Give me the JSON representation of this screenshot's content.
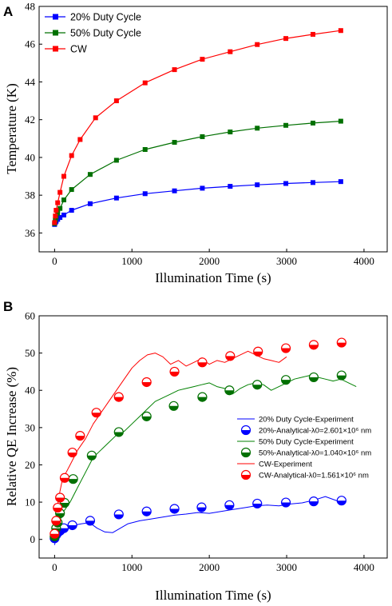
{
  "chart_data": [
    {
      "panel": "A",
      "type": "line",
      "xlabel": "Illumination Time (s)",
      "ylabel": "Temperature (K)",
      "xlim": [
        -200,
        4300
      ],
      "ylim": [
        35,
        48
      ],
      "xticks": [
        0,
        1000,
        2000,
        3000,
        4000
      ],
      "yticks": [
        36,
        38,
        40,
        42,
        44,
        46,
        48
      ],
      "legend_position": "top-left",
      "series": [
        {
          "name": "20% Duty Cycle",
          "color": "#0000ff",
          "marker": "square",
          "x": [
            0,
            10,
            20,
            40,
            70,
            120,
            220,
            460,
            800,
            1170,
            1550,
            1910,
            2270,
            2620,
            2990,
            3340,
            3700
          ],
          "y": [
            36.45,
            36.55,
            36.62,
            36.72,
            36.82,
            36.95,
            37.2,
            37.55,
            37.85,
            38.08,
            38.23,
            38.37,
            38.47,
            38.55,
            38.62,
            38.67,
            38.72
          ]
        },
        {
          "name": "50% Duty Cycle",
          "color": "#007000",
          "marker": "square",
          "x": [
            0,
            10,
            20,
            40,
            70,
            120,
            220,
            460,
            800,
            1170,
            1550,
            1910,
            2270,
            2620,
            2990,
            3340,
            3700
          ],
          "y": [
            36.5,
            36.7,
            36.85,
            37.05,
            37.3,
            37.75,
            38.3,
            39.1,
            39.85,
            40.42,
            40.8,
            41.1,
            41.35,
            41.55,
            41.7,
            41.82,
            41.92
          ]
        },
        {
          "name": "CW",
          "color": "#ff0000",
          "marker": "square",
          "x": [
            0,
            10,
            20,
            40,
            70,
            120,
            220,
            330,
            530,
            800,
            1170,
            1550,
            1910,
            2270,
            2620,
            2990,
            3340,
            3700
          ],
          "y": [
            36.55,
            36.9,
            37.2,
            37.6,
            38.15,
            39.0,
            40.1,
            40.95,
            42.1,
            43.0,
            43.95,
            44.65,
            45.2,
            45.6,
            45.98,
            46.3,
            46.52,
            46.72
          ]
        }
      ]
    },
    {
      "panel": "B",
      "type": "line",
      "xlabel": "Illumination Time (s)",
      "ylabel": "Relative QE Increase (%)",
      "xlim": [
        -200,
        4300
      ],
      "ylim": [
        -5,
        60
      ],
      "xticks": [
        0,
        1000,
        2000,
        3000,
        4000
      ],
      "yticks": [
        0,
        10,
        20,
        30,
        40,
        50,
        60
      ],
      "legend_position": "bottom-right",
      "experiment_series": [
        {
          "name": "20% Duty Cycle-Experiment",
          "color": "#0000ff",
          "x": [
            0,
            30,
            80,
            150,
            250,
            350,
            450,
            550,
            650,
            750,
            850,
            950,
            1100,
            1250,
            1400,
            1550,
            1700,
            1850,
            2000,
            2150,
            2300,
            2450,
            2600,
            2750,
            2900,
            3050,
            3200,
            3350,
            3500,
            3700
          ],
          "y": [
            -1.5,
            1.5,
            3.0,
            3.5,
            3.8,
            4.2,
            4.5,
            3.0,
            2.0,
            1.8,
            3.0,
            4.2,
            5.0,
            5.5,
            6.0,
            6.5,
            6.8,
            7.2,
            7.0,
            7.5,
            8.0,
            8.5,
            9.0,
            9.2,
            9.0,
            9.5,
            9.8,
            10.5,
            11.5,
            10.0
          ]
        },
        {
          "name": "50% Duty Cycle-Experiment",
          "color": "#008000",
          "x": [
            0,
            40,
            100,
            200,
            300,
            400,
            500,
            600,
            700,
            800,
            900,
            1000,
            1100,
            1200,
            1300,
            1400,
            1500,
            1600,
            1700,
            1800,
            1900,
            2000,
            2100,
            2200,
            2300,
            2400,
            2500,
            2600,
            2700,
            2800,
            2900,
            3000,
            3100,
            3200,
            3300,
            3400,
            3500,
            3600,
            3700,
            3800,
            3900
          ],
          "y": [
            0,
            3,
            7,
            10,
            14,
            18,
            22,
            24,
            26,
            28,
            29,
            31,
            33,
            35,
            37,
            38,
            39,
            40,
            40.5,
            41,
            41.5,
            42,
            41,
            40.5,
            39,
            40.5,
            41.5,
            42,
            41.5,
            40,
            41,
            42,
            43,
            43.5,
            44,
            43.5,
            43,
            42.5,
            43,
            42,
            41
          ]
        },
        {
          "name": "CW-Experiment",
          "color": "#ff0000",
          "x": [
            0,
            30,
            60,
            100,
            150,
            200,
            250,
            300,
            400,
            500,
            600,
            700,
            800,
            900,
            1000,
            1100,
            1200,
            1300,
            1400,
            1500,
            1600,
            1700,
            1800,
            1900,
            2000,
            2100,
            2200,
            2300,
            2400,
            2500,
            2600,
            2700,
            2800,
            2900,
            3000
          ],
          "y": [
            3,
            8,
            12,
            16,
            18,
            20,
            22,
            24,
            27,
            31,
            34,
            37,
            40,
            43,
            46,
            48,
            49.5,
            50,
            49,
            47,
            48,
            46.5,
            47.5,
            48.5,
            47,
            48,
            47.5,
            48.5,
            49.5,
            50.5,
            49.5,
            48.5,
            48,
            47.5,
            49
          ]
        }
      ],
      "analytical_series": [
        {
          "name": "20%-Analytical-λ0=2.601×10⁶ nm",
          "color": "#0000ff",
          "x": [
            0,
            20,
            40,
            70,
            120,
            230,
            460,
            830,
            1190,
            1550,
            1900,
            2260,
            2620,
            2990,
            3350,
            3710
          ],
          "y": [
            0.3,
            1.2,
            1.8,
            2.3,
            3.0,
            3.8,
            5.0,
            6.7,
            7.5,
            8.2,
            8.6,
            9.2,
            9.6,
            9.9,
            10.2,
            10.4
          ]
        },
        {
          "name": "50%-Analytical-λ0=1.040×10⁶ nm",
          "color": "#007000",
          "x": [
            0,
            20,
            40,
            70,
            130,
            240,
            480,
            830,
            1190,
            1540,
            1910,
            2260,
            2620,
            2990,
            3350,
            3710
          ],
          "y": [
            0.8,
            3.0,
            4.5,
            7.0,
            9.8,
            16.2,
            22.5,
            28.8,
            33.0,
            35.8,
            38.2,
            40.0,
            41.5,
            42.8,
            43.5,
            44.0
          ]
        },
        {
          "name": "CW-Analytical-λ0=1.561×10⁶ nm",
          "color": "#ff0000",
          "x": [
            0,
            20,
            40,
            70,
            130,
            230,
            330,
            540,
            830,
            1190,
            1550,
            1910,
            2270,
            2630,
            2990,
            3350,
            3710
          ],
          "y": [
            1.5,
            5.0,
            8.5,
            11.2,
            16.5,
            23.3,
            27.8,
            34.0,
            38.2,
            42.2,
            45.0,
            47.5,
            49.2,
            50.4,
            51.3,
            52.2,
            52.8
          ]
        }
      ]
    }
  ]
}
